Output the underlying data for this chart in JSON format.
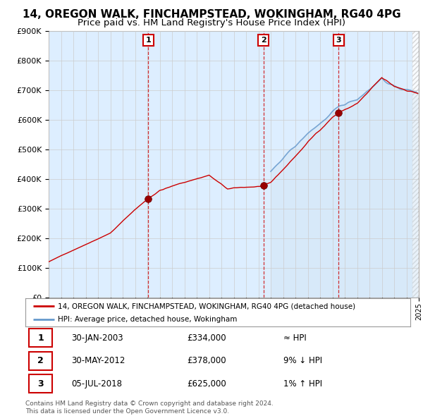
{
  "title": "14, OREGON WALK, FINCHAMPSTEAD, WOKINGHAM, RG40 4PG",
  "subtitle": "Price paid vs. HM Land Registry's House Price Index (HPI)",
  "ylim": [
    0,
    900000
  ],
  "yticks": [
    0,
    100000,
    200000,
    300000,
    400000,
    500000,
    600000,
    700000,
    800000,
    900000
  ],
  "sales": [
    {
      "date_num": 2003.08,
      "price": 334000,
      "label": "1"
    },
    {
      "date_num": 2012.41,
      "price": 378000,
      "label": "2"
    },
    {
      "date_num": 2018.51,
      "price": 625000,
      "label": "3"
    }
  ],
  "sale_labels": [
    {
      "num": "1",
      "date": "30-JAN-2003",
      "price": "£334,000",
      "vs_hpi": "≈ HPI"
    },
    {
      "num": "2",
      "date": "30-MAY-2012",
      "price": "£378,000",
      "vs_hpi": "9% ↓ HPI"
    },
    {
      "num": "3",
      "date": "05-JUL-2018",
      "price": "£625,000",
      "vs_hpi": "1% ↑ HPI"
    }
  ],
  "vline_color": "#cc0000",
  "property_line_color": "#cc0000",
  "hpi_line_color": "#6699cc",
  "hpi_fill_color": "#cce0f0",
  "chart_bg": "#ddeeff",
  "background_color": "#ffffff",
  "grid_color": "#cccccc",
  "legend_line1": "14, OREGON WALK, FINCHAMPSTEAD, WOKINGHAM, RG40 4PG (detached house)",
  "legend_line2": "HPI: Average price, detached house, Wokingham",
  "footer": "Contains HM Land Registry data © Crown copyright and database right 2024.\nThis data is licensed under the Open Government Licence v3.0.",
  "title_fontsize": 11,
  "subtitle_fontsize": 9.5,
  "hpi_start_year": 2013.0,
  "xlim_start": 1995,
  "xlim_end": 2025
}
